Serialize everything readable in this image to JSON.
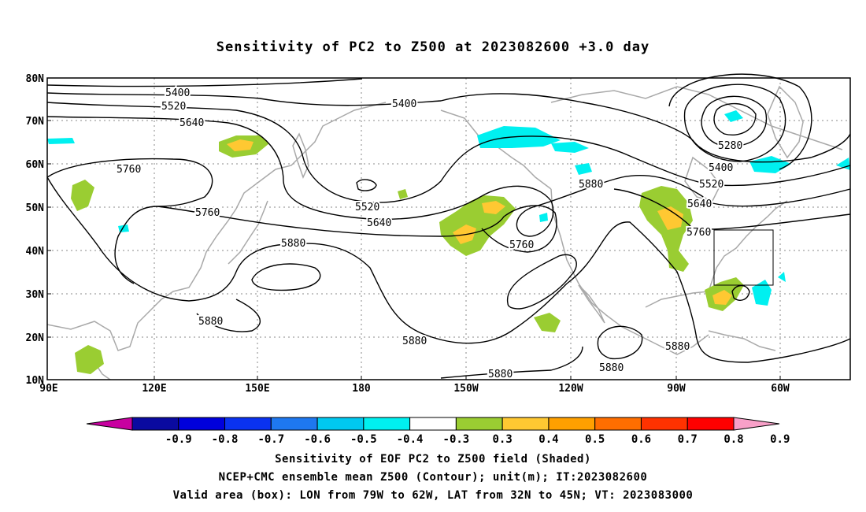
{
  "title": "Sensitivity of PC2 to Z500 at 2023082600 +3.0 day",
  "map": {
    "lat_labels": [
      "80N",
      "70N",
      "60N",
      "50N",
      "40N",
      "30N",
      "20N",
      "10N"
    ],
    "lon_labels": [
      "90E",
      "120E",
      "150E",
      "180",
      "150W",
      "120W",
      "90W",
      "60W"
    ],
    "contour_labels": [
      "5400",
      "5520",
      "5640",
      "5760",
      "5280",
      "5400",
      "5520",
      "5640",
      "5760",
      "5880",
      "5880",
      "5880",
      "5880",
      "5880",
      "5880",
      "5880",
      "5760",
      "5760",
      "5640",
      "5520",
      "5400"
    ],
    "colors": {
      "coast": "#a9a9a9",
      "contour": "#000000",
      "grid": "#888888"
    },
    "box": {
      "lon_from": "79W",
      "lon_to": "62W",
      "lat_from": "32N",
      "lat_to": "45N"
    }
  },
  "colorbar": {
    "labels": [
      "-0.9",
      "-0.8",
      "-0.7",
      "-0.6",
      "-0.5",
      "-0.4",
      "-0.3",
      "0.3",
      "0.4",
      "0.5",
      "0.6",
      "0.7",
      "0.8",
      "0.9"
    ],
    "colors": [
      "#c800a0",
      "#0a0aa0",
      "#0000dc",
      "#0a32f0",
      "#1e78f0",
      "#00c8f0",
      "#00f0f0",
      "#ffffff",
      "#9acd32",
      "#ffc832",
      "#ffa000",
      "#ff6e00",
      "#ff3200",
      "#ff0000",
      "#f8a0c8"
    ]
  },
  "captions": [
    "Sensitivity of EOF PC2 to Z500 field (Shaded)",
    "NCEP+CMC ensemble mean Z500 (Contour); unit(m); IT:2023082600",
    "Valid area (box): LON from 79W to 62W, LAT from 32N to 45N; VT: 2023083000"
  ]
}
